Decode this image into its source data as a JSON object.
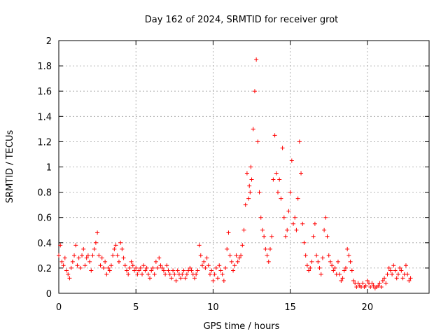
{
  "chart_data": {
    "type": "scatter",
    "title": "Day 162 of 2024, SRMTID for receiver grot",
    "xlabel": "GPS time / hours",
    "ylabel": "SRMTID / TECUs",
    "xlim": [
      0,
      24
    ],
    "ylim": [
      0,
      2
    ],
    "xticks": [
      0,
      5,
      10,
      15,
      20
    ],
    "xtick_labels": [
      "0",
      "5",
      "10",
      "15",
      "20"
    ],
    "yticks": [
      0,
      0.2,
      0.4,
      0.6,
      0.8,
      1,
      1.2,
      1.4,
      1.6,
      1.8,
      2
    ],
    "ytick_labels": [
      "0",
      "0.2",
      "0.4",
      "0.6",
      "0.8",
      "1",
      "1.2",
      "1.4",
      "1.6",
      "1.8",
      "2"
    ],
    "grid": true,
    "marker": "+",
    "series": [
      {
        "name": "SRMTID",
        "color": "#ff0000",
        "x": [
          0.0,
          0.1,
          0.2,
          0.3,
          0.4,
          0.5,
          0.6,
          0.7,
          0.8,
          0.9,
          1.0,
          1.1,
          1.2,
          1.3,
          1.4,
          1.5,
          1.6,
          1.7,
          1.8,
          1.9,
          2.0,
          2.1,
          2.2,
          2.3,
          2.4,
          2.5,
          2.6,
          2.7,
          2.8,
          2.9,
          3.0,
          3.1,
          3.2,
          3.3,
          3.4,
          3.5,
          3.6,
          3.7,
          3.8,
          3.9,
          4.0,
          4.1,
          4.2,
          4.3,
          4.4,
          4.5,
          4.6,
          4.7,
          4.8,
          4.9,
          5.0,
          5.1,
          5.2,
          5.3,
          5.4,
          5.5,
          5.6,
          5.7,
          5.8,
          5.9,
          6.0,
          6.1,
          6.2,
          6.3,
          6.4,
          6.5,
          6.6,
          6.7,
          6.8,
          6.9,
          7.0,
          7.1,
          7.2,
          7.3,
          7.4,
          7.5,
          7.6,
          7.7,
          7.8,
          7.9,
          8.0,
          8.1,
          8.2,
          8.3,
          8.4,
          8.5,
          8.6,
          8.7,
          8.8,
          8.9,
          9.0,
          9.1,
          9.2,
          9.3,
          9.4,
          9.5,
          9.6,
          9.7,
          9.8,
          9.9,
          10.0,
          10.1,
          10.2,
          10.3,
          10.4,
          10.5,
          10.6,
          10.7,
          10.8,
          10.9,
          11.0,
          11.1,
          11.2,
          11.3,
          11.4,
          11.5,
          11.6,
          11.7,
          11.8,
          11.9,
          12.0,
          12.1,
          12.2,
          12.3,
          12.35,
          12.4,
          12.45,
          12.5,
          12.6,
          12.7,
          12.8,
          12.9,
          13.0,
          13.1,
          13.2,
          13.3,
          13.4,
          13.5,
          13.6,
          13.7,
          13.8,
          13.9,
          14.0,
          14.1,
          14.2,
          14.3,
          14.4,
          14.5,
          14.6,
          14.7,
          14.8,
          14.9,
          15.0,
          15.1,
          15.2,
          15.3,
          15.4,
          15.5,
          15.6,
          15.7,
          15.8,
          15.9,
          16.0,
          16.1,
          16.2,
          16.3,
          16.4,
          16.5,
          16.6,
          16.7,
          16.8,
          16.9,
          17.0,
          17.1,
          17.2,
          17.3,
          17.4,
          17.5,
          17.6,
          17.7,
          17.8,
          17.9,
          18.0,
          18.1,
          18.2,
          18.3,
          18.4,
          18.5,
          18.6,
          18.7,
          18.8,
          18.9,
          19.0,
          19.1,
          19.2,
          19.3,
          19.4,
          19.5,
          19.6,
          19.7,
          19.8,
          19.9,
          20.0,
          20.1,
          20.2,
          20.3,
          20.4,
          20.5,
          20.6,
          20.7,
          20.8,
          20.9,
          21.0,
          21.1,
          21.2,
          21.3,
          21.4,
          21.5,
          21.6,
          21.7,
          21.8,
          21.9,
          22.0,
          22.1,
          22.2,
          22.3,
          22.4,
          22.5,
          22.6,
          22.7,
          22.8
        ],
        "y": [
          0.3,
          0.38,
          0.25,
          0.22,
          0.28,
          0.18,
          0.15,
          0.12,
          0.2,
          0.25,
          0.3,
          0.38,
          0.22,
          0.28,
          0.2,
          0.3,
          0.35,
          0.22,
          0.28,
          0.3,
          0.25,
          0.18,
          0.3,
          0.35,
          0.4,
          0.48,
          0.3,
          0.22,
          0.28,
          0.2,
          0.25,
          0.15,
          0.2,
          0.18,
          0.22,
          0.3,
          0.35,
          0.38,
          0.3,
          0.25,
          0.4,
          0.35,
          0.28,
          0.22,
          0.18,
          0.15,
          0.2,
          0.25,
          0.22,
          0.18,
          0.2,
          0.15,
          0.18,
          0.2,
          0.15,
          0.22,
          0.18,
          0.2,
          0.15,
          0.12,
          0.18,
          0.2,
          0.15,
          0.25,
          0.2,
          0.28,
          0.22,
          0.2,
          0.18,
          0.15,
          0.22,
          0.18,
          0.15,
          0.12,
          0.18,
          0.15,
          0.1,
          0.18,
          0.15,
          0.12,
          0.15,
          0.18,
          0.12,
          0.15,
          0.18,
          0.2,
          0.18,
          0.15,
          0.12,
          0.15,
          0.18,
          0.38,
          0.3,
          0.22,
          0.25,
          0.2,
          0.28,
          0.22,
          0.15,
          0.18,
          0.1,
          0.15,
          0.2,
          0.12,
          0.22,
          0.18,
          0.15,
          0.1,
          0.2,
          0.35,
          0.48,
          0.3,
          0.25,
          0.18,
          0.22,
          0.3,
          0.25,
          0.28,
          0.3,
          0.38,
          0.5,
          0.7,
          0.95,
          0.75,
          0.85,
          0.8,
          1.0,
          0.9,
          1.3,
          1.6,
          1.85,
          1.2,
          0.8,
          0.6,
          0.5,
          0.45,
          0.35,
          0.3,
          0.25,
          0.35,
          0.45,
          0.9,
          1.25,
          0.95,
          0.8,
          0.9,
          0.75,
          1.15,
          0.6,
          0.45,
          0.5,
          0.65,
          0.8,
          1.05,
          0.55,
          0.6,
          0.5,
          0.75,
          1.2,
          0.95,
          0.55,
          0.4,
          0.3,
          0.22,
          0.18,
          0.2,
          0.25,
          0.45,
          0.55,
          0.3,
          0.25,
          0.2,
          0.15,
          0.28,
          0.5,
          0.6,
          0.45,
          0.3,
          0.25,
          0.22,
          0.18,
          0.2,
          0.15,
          0.25,
          0.15,
          0.1,
          0.12,
          0.18,
          0.2,
          0.35,
          0.3,
          0.25,
          0.18,
          0.1,
          0.08,
          0.05,
          0.08,
          0.06,
          0.05,
          0.08,
          0.05,
          0.06,
          0.1,
          0.08,
          0.05,
          0.08,
          0.06,
          0.04,
          0.05,
          0.06,
          0.08,
          0.05,
          0.1,
          0.12,
          0.08,
          0.15,
          0.2,
          0.18,
          0.15,
          0.22,
          0.18,
          0.12,
          0.15,
          0.2,
          0.18,
          0.12,
          0.15,
          0.22,
          0.15,
          0.1,
          0.12
        ]
      }
    ]
  }
}
